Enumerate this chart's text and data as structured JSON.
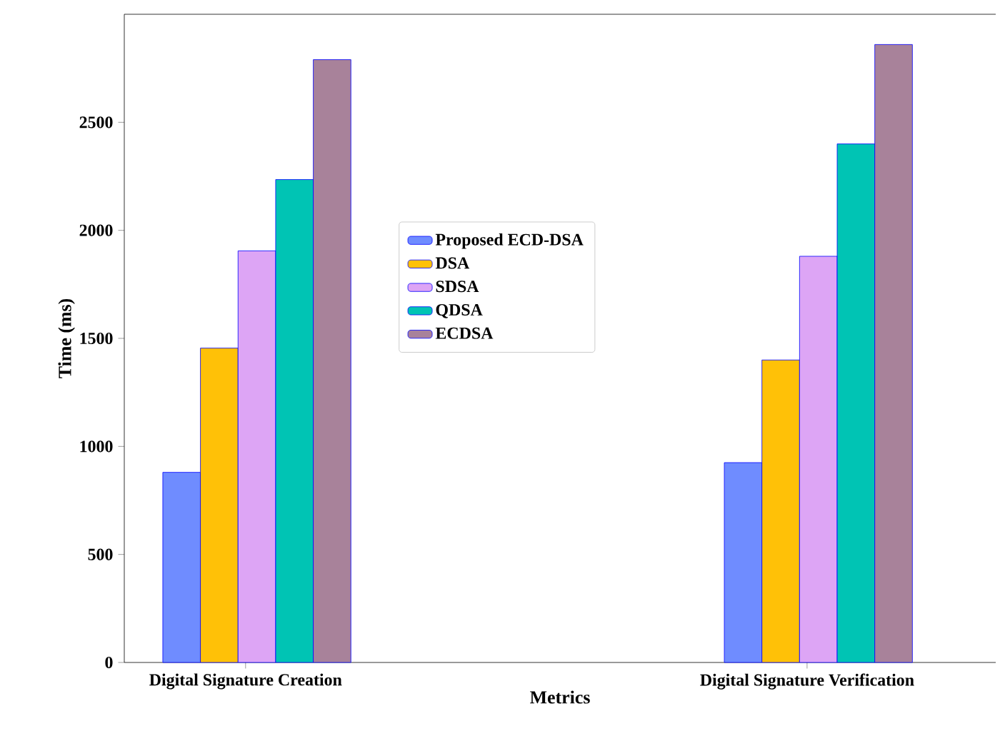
{
  "chart_data": {
    "type": "bar",
    "xlabel": "Metrics",
    "ylabel": "Time (ms)",
    "categories": [
      "Digital Signature Creation",
      "Digital Signature Verification"
    ],
    "series": [
      {
        "name": "Proposed ECD-DSA",
        "color": "#6f8cff",
        "values": [
          880,
          925
        ]
      },
      {
        "name": "DSA",
        "color": "#ffc107",
        "values": [
          1455,
          1400
        ]
      },
      {
        "name": "SDSA",
        "color": "#dda5f5",
        "values": [
          1905,
          1880
        ]
      },
      {
        "name": "QDSA",
        "color": "#00c4b4",
        "values": [
          2235,
          2400
        ]
      },
      {
        "name": "ECDSA",
        "color": "#a8829a",
        "values": [
          2790,
          2860
        ]
      }
    ],
    "ylim": [
      0,
      3000
    ],
    "yticks": [
      0,
      500,
      1000,
      1500,
      2000,
      2500
    ],
    "legend": "center",
    "grid": false
  }
}
